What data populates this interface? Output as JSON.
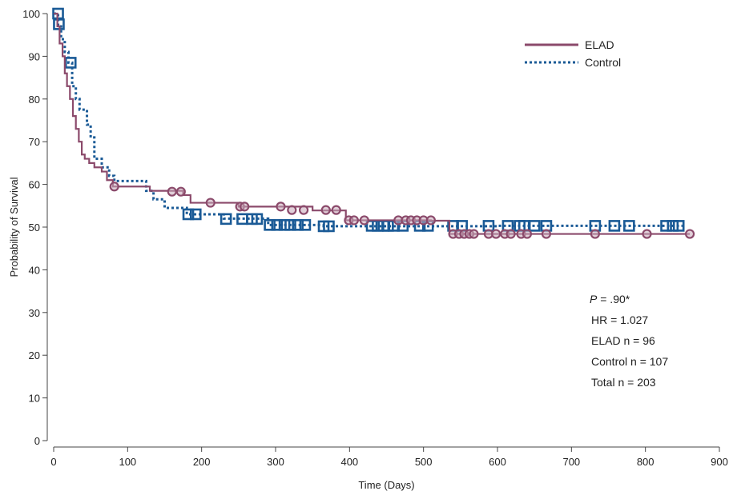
{
  "chart_data": {
    "type": "line",
    "title": "",
    "xlabel": "Time (Days)",
    "ylabel": "Probability of Survival",
    "xlim": [
      0,
      900
    ],
    "ylim": [
      0,
      100
    ],
    "x_ticks": [
      0,
      100,
      200,
      300,
      400,
      500,
      600,
      700,
      800,
      900
    ],
    "y_ticks": [
      0,
      10,
      20,
      30,
      40,
      50,
      60,
      70,
      80,
      90,
      100
    ],
    "grid": false,
    "legend_position": "top-right",
    "series": [
      {
        "name": "ELAD",
        "color": "#8b4a6b",
        "line_style": "solid",
        "marker": "circle",
        "steps": [
          [
            0,
            100
          ],
          [
            5,
            97
          ],
          [
            8,
            93
          ],
          [
            12,
            90
          ],
          [
            15,
            86
          ],
          [
            18,
            83
          ],
          [
            22,
            80
          ],
          [
            26,
            76
          ],
          [
            30,
            73
          ],
          [
            34,
            70
          ],
          [
            38,
            67
          ],
          [
            42,
            66
          ],
          [
            48,
            65
          ],
          [
            55,
            64
          ],
          [
            65,
            63
          ],
          [
            72,
            61
          ],
          [
            80,
            59.5
          ],
          [
            130,
            58.5
          ],
          [
            175,
            57.5
          ],
          [
            185,
            55.7
          ],
          [
            250,
            54.8
          ],
          [
            350,
            53.9
          ],
          [
            395,
            51.6
          ],
          [
            510,
            51.5
          ],
          [
            535,
            48.4
          ],
          [
            860,
            48.4
          ]
        ],
        "censored": [
          [
            82,
            59.5
          ],
          [
            160,
            58.3
          ],
          [
            172,
            58.3
          ],
          [
            212,
            55.7
          ],
          [
            252,
            54.8
          ],
          [
            258,
            54.8
          ],
          [
            307,
            54.8
          ],
          [
            322,
            54
          ],
          [
            338,
            54
          ],
          [
            368,
            54
          ],
          [
            382,
            54
          ],
          [
            399,
            51.6
          ],
          [
            406,
            51.6
          ],
          [
            420,
            51.6
          ],
          [
            466,
            51.6
          ],
          [
            476,
            51.6
          ],
          [
            483,
            51.6
          ],
          [
            491,
            51.6
          ],
          [
            500,
            51.6
          ],
          [
            510,
            51.6
          ],
          [
            540,
            48.4
          ],
          [
            548,
            48.4
          ],
          [
            555,
            48.4
          ],
          [
            562,
            48.4
          ],
          [
            568,
            48.4
          ],
          [
            588,
            48.4
          ],
          [
            598,
            48.4
          ],
          [
            610,
            48.4
          ],
          [
            618,
            48.4
          ],
          [
            632,
            48.4
          ],
          [
            640,
            48.4
          ],
          [
            666,
            48.4
          ],
          [
            732,
            48.4
          ],
          [
            802,
            48.4
          ],
          [
            860,
            48.4
          ]
        ]
      },
      {
        "name": "Control",
        "color": "#1a5a96",
        "line_style": "dotted",
        "marker": "square",
        "steps": [
          [
            0,
            100
          ],
          [
            6,
            97
          ],
          [
            10,
            94
          ],
          [
            15,
            91
          ],
          [
            20,
            88.5
          ],
          [
            25,
            83
          ],
          [
            30,
            80
          ],
          [
            35,
            77.5
          ],
          [
            45,
            74
          ],
          [
            50,
            71
          ],
          [
            55,
            66
          ],
          [
            65,
            64
          ],
          [
            75,
            62
          ],
          [
            82,
            60.8
          ],
          [
            125,
            58.5
          ],
          [
            135,
            56.5
          ],
          [
            150,
            54.5
          ],
          [
            180,
            53
          ],
          [
            230,
            52
          ],
          [
            290,
            50.5
          ],
          [
            365,
            50.2
          ],
          [
            600,
            50.3
          ],
          [
            850,
            50.3
          ]
        ],
        "censored": [
          [
            6,
            100
          ],
          [
            7,
            97.5
          ],
          [
            23,
            88.5
          ],
          [
            182,
            53
          ],
          [
            192,
            53
          ],
          [
            233,
            51.9
          ],
          [
            255,
            51.9
          ],
          [
            268,
            51.9
          ],
          [
            275,
            51.9
          ],
          [
            292,
            50.5
          ],
          [
            302,
            50.5
          ],
          [
            312,
            50.5
          ],
          [
            320,
            50.5
          ],
          [
            330,
            50.5
          ],
          [
            340,
            50.5
          ],
          [
            365,
            50.2
          ],
          [
            372,
            50.2
          ],
          [
            430,
            50.3
          ],
          [
            438,
            50.3
          ],
          [
            446,
            50.3
          ],
          [
            452,
            50.3
          ],
          [
            460,
            50.3
          ],
          [
            472,
            50.3
          ],
          [
            495,
            50.3
          ],
          [
            506,
            50.3
          ],
          [
            540,
            50.3
          ],
          [
            552,
            50.3
          ],
          [
            588,
            50.3
          ],
          [
            614,
            50.3
          ],
          [
            630,
            50.3
          ],
          [
            636,
            50.3
          ],
          [
            650,
            50.3
          ],
          [
            666,
            50.3
          ],
          [
            732,
            50.3
          ],
          [
            758,
            50.3
          ],
          [
            778,
            50.3
          ],
          [
            828,
            50.3
          ],
          [
            837,
            50.3
          ],
          [
            845,
            50.3
          ]
        ]
      }
    ],
    "annotations": {
      "p_label": "P",
      "p_value": " = .90*",
      "hr": "HR = 1.027",
      "elad_n": "ELAD n = 96",
      "control_n": "Control n = 107",
      "total_n": "Total n = 203"
    }
  }
}
